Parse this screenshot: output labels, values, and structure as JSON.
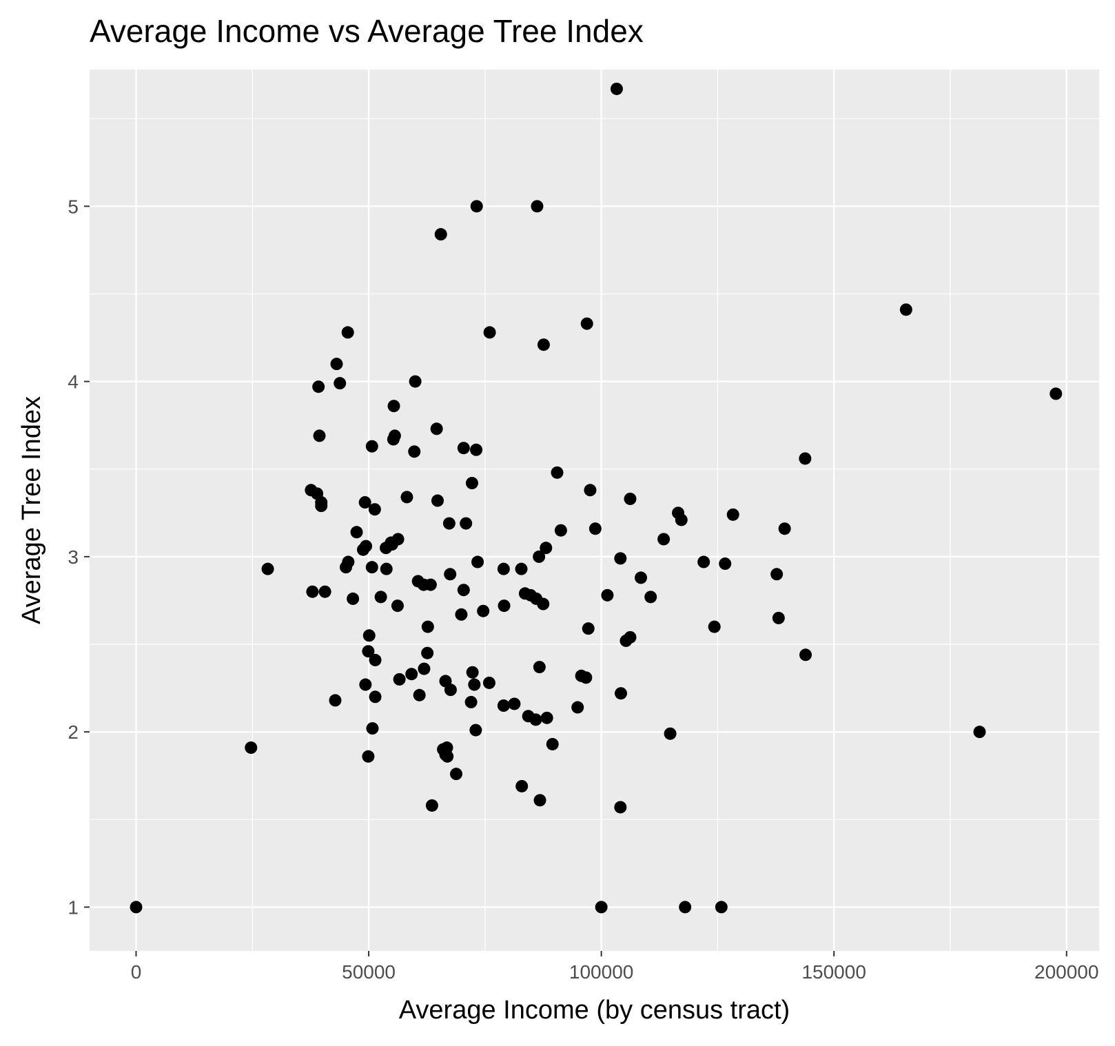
{
  "chart_data": {
    "type": "scatter",
    "title": "Average Income vs Average Tree Index",
    "xlabel": "Average Income (by census tract)",
    "ylabel": "Average Tree Index",
    "xlim": [
      -10000,
      207000
    ],
    "ylim": [
      0.75,
      5.78
    ],
    "x_ticks": [
      0,
      50000,
      100000,
      150000,
      200000
    ],
    "x_tick_labels": [
      "0",
      "50000",
      "100000",
      "150000",
      "200000"
    ],
    "y_ticks": [
      1,
      2,
      3,
      4,
      5
    ],
    "y_tick_labels": [
      "1",
      "2",
      "3",
      "4",
      "5"
    ],
    "grid": true,
    "panel_color": "#ebebeb",
    "grid_color": "#ffffff",
    "point_color": "#000000",
    "points": [
      [
        0,
        1.0
      ],
      [
        100000,
        1.0
      ],
      [
        118000,
        1.0
      ],
      [
        125800,
        1.0
      ],
      [
        24700,
        1.91
      ],
      [
        28300,
        2.93
      ],
      [
        103300,
        5.67
      ],
      [
        73200,
        5.0
      ],
      [
        86200,
        5.0
      ],
      [
        65500,
        4.84
      ],
      [
        165500,
        4.41
      ],
      [
        96900,
        4.33
      ],
      [
        76000,
        4.28
      ],
      [
        45500,
        4.28
      ],
      [
        87600,
        4.21
      ],
      [
        43100,
        4.1
      ],
      [
        60000,
        4.0
      ],
      [
        43800,
        3.99
      ],
      [
        39200,
        3.97
      ],
      [
        197700,
        3.93
      ],
      [
        55400,
        3.86
      ],
      [
        64600,
        3.73
      ],
      [
        55600,
        3.69
      ],
      [
        39400,
        3.69
      ],
      [
        55300,
        3.67
      ],
      [
        50700,
        3.63
      ],
      [
        70400,
        3.62
      ],
      [
        73100,
        3.61
      ],
      [
        59800,
        3.6
      ],
      [
        143800,
        3.56
      ],
      [
        90500,
        3.48
      ],
      [
        72200,
        3.42
      ],
      [
        37600,
        3.38
      ],
      [
        97600,
        3.38
      ],
      [
        38900,
        3.36
      ],
      [
        58200,
        3.34
      ],
      [
        106200,
        3.33
      ],
      [
        64800,
        3.32
      ],
      [
        49200,
        3.31
      ],
      [
        39800,
        3.31
      ],
      [
        39800,
        3.29
      ],
      [
        51300,
        3.27
      ],
      [
        116500,
        3.25
      ],
      [
        128300,
        3.24
      ],
      [
        117200,
        3.21
      ],
      [
        67300,
        3.19
      ],
      [
        70900,
        3.19
      ],
      [
        98700,
        3.16
      ],
      [
        139400,
        3.16
      ],
      [
        91300,
        3.15
      ],
      [
        47400,
        3.14
      ],
      [
        56300,
        3.1
      ],
      [
        113400,
        3.1
      ],
      [
        54800,
        3.08
      ],
      [
        55000,
        3.07
      ],
      [
        49400,
        3.06
      ],
      [
        88100,
        3.05
      ],
      [
        53700,
        3.05
      ],
      [
        48800,
        3.04
      ],
      [
        86600,
        3.0
      ],
      [
        104100,
        2.99
      ],
      [
        73400,
        2.97
      ],
      [
        45600,
        2.97
      ],
      [
        122000,
        2.97
      ],
      [
        126600,
        2.96
      ],
      [
        45100,
        2.94
      ],
      [
        50700,
        2.94
      ],
      [
        53800,
        2.93
      ],
      [
        79000,
        2.93
      ],
      [
        82800,
        2.93
      ],
      [
        67500,
        2.9
      ],
      [
        137700,
        2.9
      ],
      [
        108500,
        2.88
      ],
      [
        60600,
        2.86
      ],
      [
        61800,
        2.84
      ],
      [
        63300,
        2.84
      ],
      [
        70400,
        2.81
      ],
      [
        37900,
        2.8
      ],
      [
        40600,
        2.8
      ],
      [
        83600,
        2.79
      ],
      [
        84800,
        2.78
      ],
      [
        101300,
        2.78
      ],
      [
        52600,
        2.77
      ],
      [
        110600,
        2.77
      ],
      [
        86000,
        2.76
      ],
      [
        46600,
        2.76
      ],
      [
        87500,
        2.73
      ],
      [
        56200,
        2.72
      ],
      [
        79100,
        2.72
      ],
      [
        74600,
        2.69
      ],
      [
        69900,
        2.67
      ],
      [
        138100,
        2.65
      ],
      [
        62700,
        2.6
      ],
      [
        124300,
        2.6
      ],
      [
        97200,
        2.59
      ],
      [
        50100,
        2.55
      ],
      [
        106200,
        2.54
      ],
      [
        105300,
        2.52
      ],
      [
        49900,
        2.46
      ],
      [
        62600,
        2.45
      ],
      [
        143900,
        2.44
      ],
      [
        51400,
        2.41
      ],
      [
        86700,
        2.37
      ],
      [
        61900,
        2.36
      ],
      [
        72300,
        2.34
      ],
      [
        59200,
        2.33
      ],
      [
        95700,
        2.32
      ],
      [
        96700,
        2.31
      ],
      [
        56600,
        2.3
      ],
      [
        66500,
        2.29
      ],
      [
        75900,
        2.28
      ],
      [
        72700,
        2.27
      ],
      [
        49300,
        2.27
      ],
      [
        67600,
        2.24
      ],
      [
        104200,
        2.22
      ],
      [
        60900,
        2.21
      ],
      [
        51400,
        2.2
      ],
      [
        42800,
        2.18
      ],
      [
        72000,
        2.17
      ],
      [
        81300,
        2.16
      ],
      [
        79000,
        2.15
      ],
      [
        94900,
        2.14
      ],
      [
        84300,
        2.09
      ],
      [
        88300,
        2.08
      ],
      [
        85900,
        2.07
      ],
      [
        50800,
        2.02
      ],
      [
        73000,
        2.01
      ],
      [
        181300,
        2.0
      ],
      [
        114800,
        1.99
      ],
      [
        89500,
        1.93
      ],
      [
        66800,
        1.91
      ],
      [
        66000,
        1.9
      ],
      [
        66500,
        1.87
      ],
      [
        66900,
        1.86
      ],
      [
        49900,
        1.86
      ],
      [
        68800,
        1.76
      ],
      [
        82900,
        1.69
      ],
      [
        86800,
        1.61
      ],
      [
        63600,
        1.58
      ],
      [
        104100,
        1.57
      ]
    ]
  }
}
